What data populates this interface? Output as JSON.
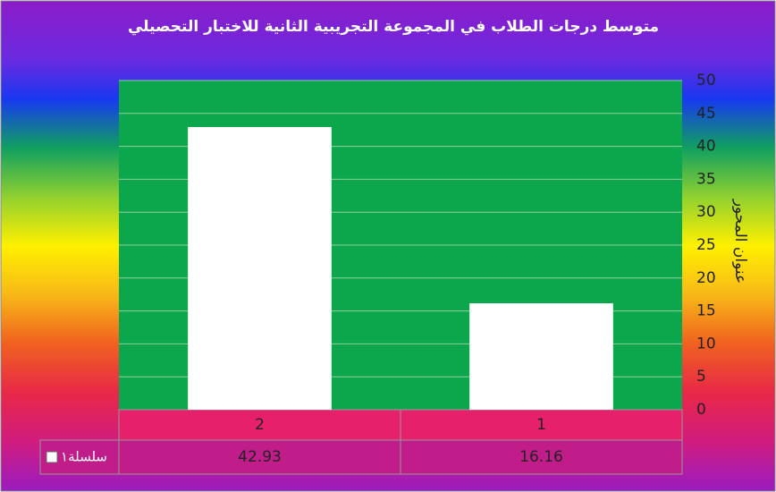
{
  "chart_data": {
    "type": "bar",
    "title": "متوسط درجات الطلاب في المجموعة التجريبية الثانية  للاختبار التحصيلي",
    "y_axis_label": "عنوان المحور",
    "categories": [
      "2",
      "1"
    ],
    "series": [
      {
        "name": "سلسلة١",
        "color": "#ffffff",
        "values": [
          42.93,
          16.16
        ]
      }
    ],
    "ylim": [
      0,
      50
    ],
    "yticks": [
      0,
      5,
      10,
      15,
      20,
      25,
      30,
      35,
      40,
      45,
      50
    ],
    "y_axis_side": "right",
    "grid": true,
    "data_table": true
  }
}
